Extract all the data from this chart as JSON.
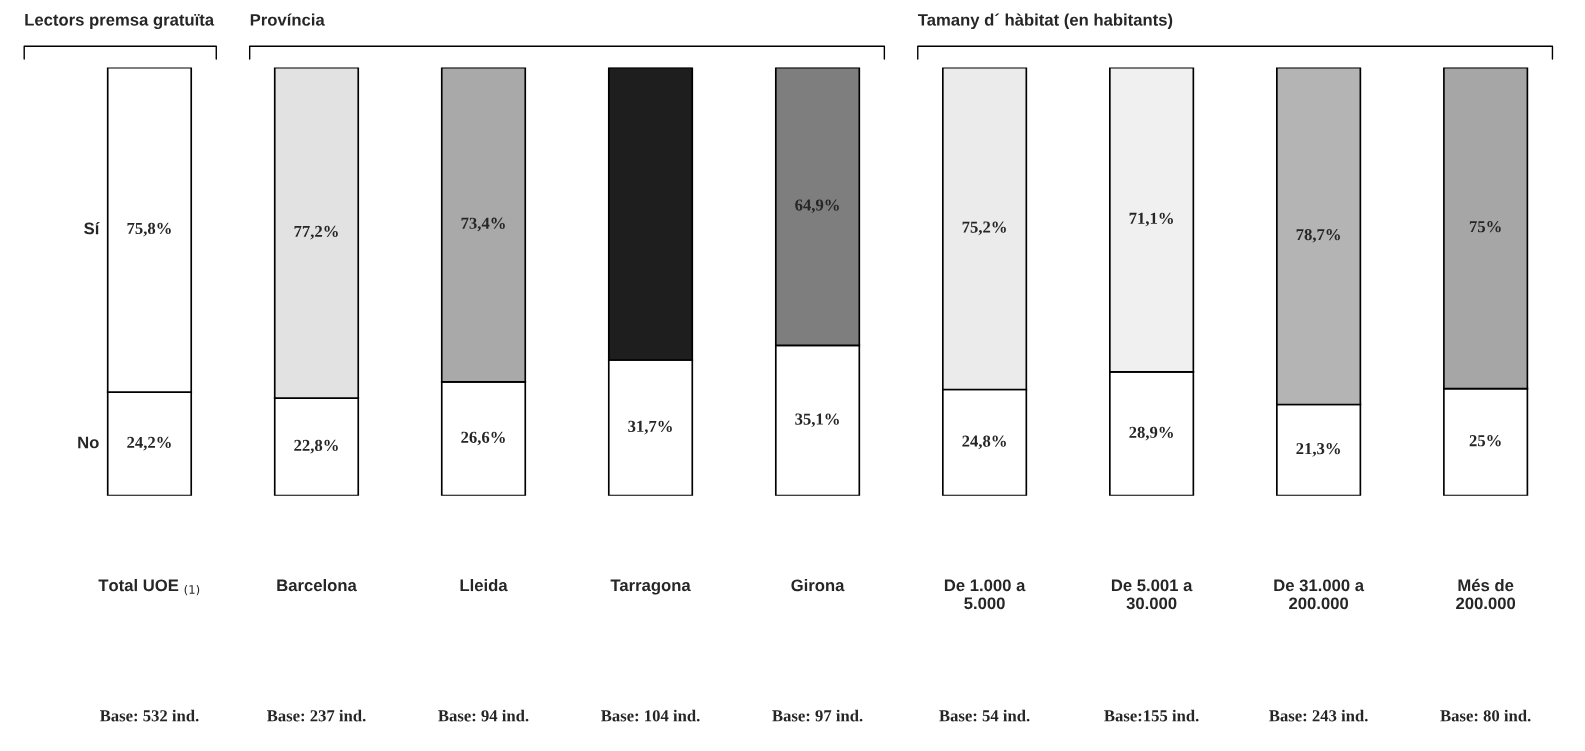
{
  "chart_data": {
    "type": "bar",
    "stacked": true,
    "categories": [
      "Total UOE $_{(1)}$",
      "Barcelona",
      "Lleida",
      "Tarragona",
      "Girona",
      "De 1.000 a\n5.000",
      "De 5.001 a\n30.000",
      "De 31.000 a\n200.000",
      "Més de\n200.000"
    ],
    "series": [
      {
        "name": "No",
        "color": "#ffffff",
        "values": [
          24.2,
          22.8,
          26.6,
          31.7,
          35.1,
          24.8,
          28.9,
          21.3,
          25
        ],
        "value_labels": [
          "24,2%",
          "22,8%",
          "26,6%",
          "31,7%",
          "35,1%",
          "24,8%",
          "28,9%",
          "21,3%",
          "25%"
        ]
      },
      {
        "name": "Sí",
        "colors": [
          "#ffffff",
          "#e2e2e2",
          "#a9a9a9",
          "#1e1e1e",
          "#7e7e7e",
          "#ebebeb",
          "#f0f0f0",
          "#b4b4b4",
          "#a6a6a6"
        ],
        "values": [
          75.8,
          77.2,
          73.4,
          68.3,
          64.9,
          75.2,
          71.1,
          78.7,
          75
        ],
        "value_labels": [
          "75,8%",
          "77,2%",
          "73,4%",
          null,
          "64,9%",
          "75,2%",
          "71,1%",
          "78,7%",
          "75%"
        ]
      }
    ],
    "annotations": [
      "Lectors premsa gratuïta",
      "Província",
      "Tamany d´ hàbitat (en habitants)",
      "Base: 532 ind.",
      "Base: 237 ind.",
      "Base: 94 ind.",
      "Base: 104 ind.",
      "Base: 97 ind.",
      "Base: 54 ind.",
      "Base:155 ind.",
      "Base: 243 ind.",
      "Base: 80 ind."
    ],
    "grid": false,
    "legend": false
  }
}
